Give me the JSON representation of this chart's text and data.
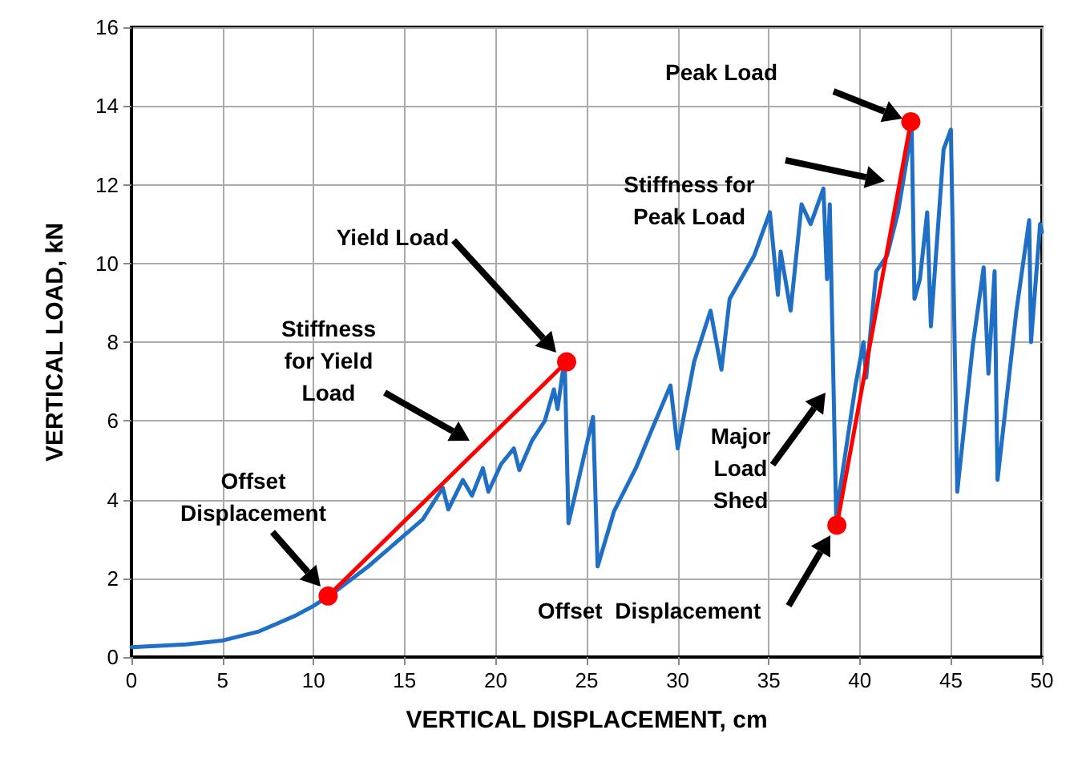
{
  "chart_data": {
    "type": "line",
    "xlabel": "VERTICAL DISPLACEMENT, cm",
    "ylabel": "VERTICAL LOAD, kN",
    "xlim": [
      0,
      50
    ],
    "xticks": [
      0,
      5,
      10,
      15,
      20,
      25,
      30,
      35,
      40,
      45,
      50
    ],
    "ylim": [
      0,
      16
    ],
    "yticks": [
      0,
      2,
      4,
      6,
      8,
      10,
      12,
      14,
      16
    ],
    "grid": true,
    "marker": "none",
    "line_style": "solid",
    "series": [
      {
        "color": "#1f6fc5",
        "x": [
          0,
          3,
          5,
          7,
          8,
          9,
          10,
          11,
          12,
          13,
          14,
          15,
          16,
          17.1,
          17.4,
          18.2,
          18.7,
          19.3,
          19.6,
          20.3,
          21,
          21.3,
          22,
          22.7,
          23.2,
          23.4,
          23.7,
          23.8,
          24.0,
          25.35,
          25.6,
          26.5,
          27.7,
          28.6,
          29.6,
          30.0,
          30.9,
          31.8,
          32.4,
          32.85,
          34.2,
          35.06,
          35.5,
          35.65,
          36.2,
          36.8,
          37.3,
          38.0,
          38.2,
          38.35,
          38.7,
          39.76,
          40.2,
          40.35,
          40.9,
          41.5,
          42.1,
          42.85,
          43.0,
          43.3,
          43.7,
          43.9,
          44.6,
          45.0,
          45.35,
          46.2,
          46.8,
          47.06,
          47.4,
          47.56,
          48.6,
          49.3,
          49.4,
          49.9,
          50
        ],
        "values": [
          0.25,
          0.32,
          0.42,
          0.65,
          0.85,
          1.05,
          1.3,
          1.6,
          1.95,
          2.3,
          2.7,
          3.1,
          3.5,
          4.3,
          3.75,
          4.5,
          4.1,
          4.8,
          4.2,
          4.9,
          5.3,
          4.75,
          5.5,
          6.0,
          6.8,
          6.3,
          7.3,
          7.4,
          3.4,
          6.1,
          2.3,
          3.7,
          4.8,
          5.8,
          6.9,
          5.3,
          7.5,
          8.8,
          7.3,
          9.1,
          10.2,
          11.3,
          9.2,
          10.3,
          8.8,
          11.5,
          11.0,
          11.9,
          9.6,
          11.5,
          3.6,
          6.9,
          8.0,
          7.1,
          9.8,
          10.2,
          11.3,
          13.4,
          9.1,
          9.6,
          11.3,
          8.4,
          12.9,
          13.4,
          4.2,
          7.9,
          9.9,
          7.2,
          9.8,
          4.5,
          8.8,
          11.1,
          8.0,
          11.0,
          10.8
        ]
      },
      {
        "color": "#ff0000",
        "marker": "circle",
        "x": [
          10.8,
          23.9
        ],
        "values": [
          1.55,
          7.5
        ]
      },
      {
        "color": "#ff0000",
        "marker": "circle",
        "x": [
          38.74,
          42.8
        ],
        "values": [
          3.35,
          13.6
        ]
      }
    ],
    "annotations": [
      "Peak Load",
      "Stiffness for\nPeak Load",
      "Yield Load",
      "Stiffness\nfor Yield\nLoad",
      "Offset\nDisplacement",
      "Major\nLoad\nShed",
      "Offset  Displacement"
    ]
  }
}
